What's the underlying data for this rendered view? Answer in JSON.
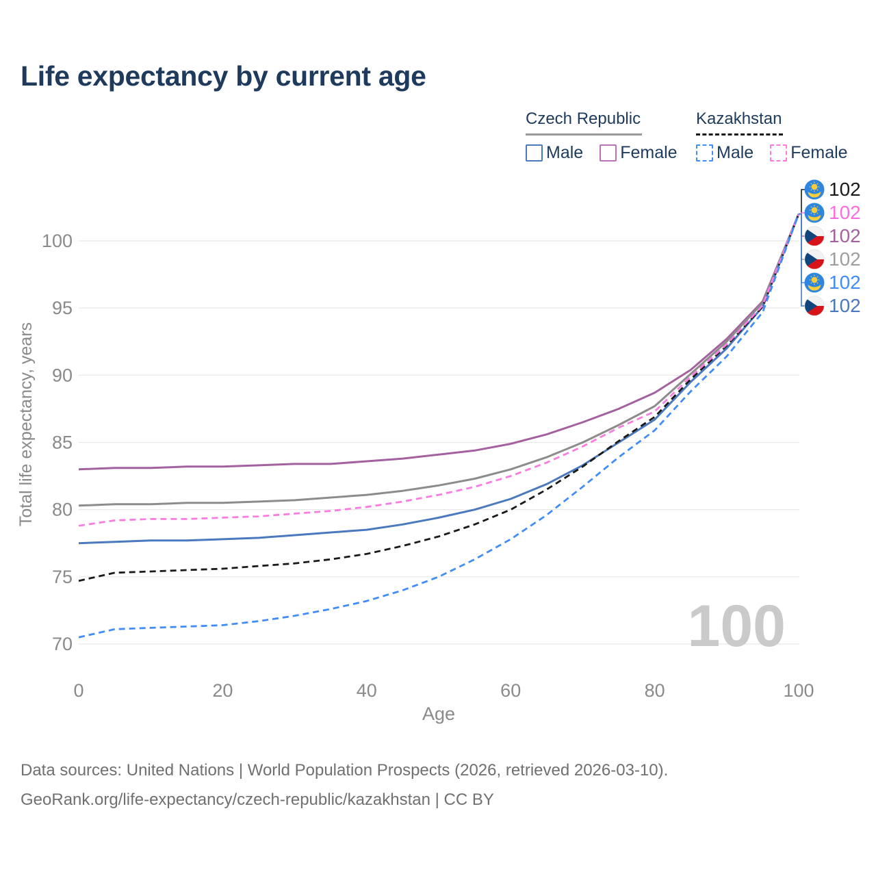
{
  "title": "Life expectancy by current age",
  "legend": {
    "groups": [
      {
        "label": "Czech Republic",
        "line_style": "solid",
        "line_color": "#9a9a9a",
        "items": [
          {
            "label": "Male",
            "color": "#4a79bd",
            "line_style": "solid"
          },
          {
            "label": "Female",
            "color": "#b873b4",
            "line_style": "solid"
          }
        ]
      },
      {
        "label": "Kazakhstan",
        "line_style": "dashed",
        "line_color": "#1a1a1a",
        "items": [
          {
            "label": "Male",
            "color": "#418df7",
            "line_style": "dashed"
          },
          {
            "label": "Female",
            "color": "#fb7ce1",
            "line_style": "dashed"
          }
        ]
      }
    ]
  },
  "chart_data": {
    "type": "line",
    "title": "Life expectancy by current age",
    "xlabel": "Age",
    "ylabel": "Total life expectancy, years",
    "x_ticks": [
      0,
      20,
      40,
      60,
      80,
      100
    ],
    "y_ticks": [
      70,
      75,
      80,
      85,
      90,
      95,
      100
    ],
    "xlim": [
      0,
      100
    ],
    "ylim": [
      68.5,
      103
    ],
    "grid": "horizontal",
    "legend_position": "top-right",
    "x": [
      0,
      5,
      10,
      15,
      20,
      25,
      30,
      35,
      40,
      45,
      50,
      55,
      60,
      65,
      70,
      75,
      80,
      85,
      90,
      95,
      100
    ],
    "series": [
      {
        "name": "Czech Republic — Female",
        "country": "Czech Republic",
        "sex": "Female",
        "color": "#a4619f",
        "dashed": false,
        "values": [
          83.0,
          83.1,
          83.1,
          83.2,
          83.2,
          83.3,
          83.4,
          83.4,
          83.6,
          83.8,
          84.1,
          84.4,
          84.9,
          85.6,
          86.5,
          87.5,
          88.7,
          90.4,
          92.7,
          95.5,
          102
        ]
      },
      {
        "name": "Czech Republic — Both sexes",
        "country": "Czech Republic",
        "sex": "Both sexes",
        "color": "#8c8c8c",
        "dashed": false,
        "values": [
          80.3,
          80.4,
          80.4,
          80.5,
          80.5,
          80.6,
          80.7,
          80.9,
          81.1,
          81.4,
          81.8,
          82.3,
          83.0,
          83.9,
          85.0,
          86.3,
          87.7,
          90.1,
          92.5,
          95.4,
          102
        ]
      },
      {
        "name": "Czech Republic — Male",
        "country": "Czech Republic",
        "sex": "Male",
        "color": "#4a79bd",
        "dashed": false,
        "values": [
          77.5,
          77.6,
          77.7,
          77.7,
          77.8,
          77.9,
          78.1,
          78.3,
          78.5,
          78.9,
          79.4,
          80.0,
          80.8,
          81.9,
          83.3,
          85.0,
          86.7,
          89.5,
          92.0,
          95.1,
          102
        ]
      },
      {
        "name": "Kazakhstan — Both sexes",
        "country": "Kazakhstan",
        "sex": "Both sexes",
        "color": "#1a1a1a",
        "dashed": true,
        "values": [
          74.7,
          75.3,
          75.4,
          75.5,
          75.6,
          75.8,
          76.0,
          76.3,
          76.7,
          77.3,
          78.0,
          78.9,
          80.0,
          81.5,
          83.2,
          85.1,
          86.9,
          89.7,
          92.2,
          95.1,
          102
        ]
      },
      {
        "name": "Kazakhstan — Female",
        "country": "Kazakhstan",
        "sex": "Female",
        "color": "#fb7ce1",
        "dashed": true,
        "values": [
          78.8,
          79.2,
          79.3,
          79.3,
          79.4,
          79.5,
          79.7,
          79.9,
          80.2,
          80.6,
          81.1,
          81.7,
          82.5,
          83.5,
          84.7,
          86.1,
          87.3,
          89.9,
          92.3,
          95.2,
          102
        ]
      },
      {
        "name": "Kazakhstan — Male",
        "country": "Kazakhstan",
        "sex": "Male",
        "color": "#418df7",
        "dashed": true,
        "values": [
          70.5,
          71.1,
          71.2,
          71.3,
          71.4,
          71.7,
          72.1,
          72.6,
          73.2,
          74.0,
          75.0,
          76.3,
          77.8,
          79.6,
          81.7,
          83.9,
          85.9,
          88.8,
          91.4,
          94.7,
          102
        ]
      }
    ],
    "end_labels": [
      {
        "flag": "kz",
        "text": "102",
        "color": "#1a1a1a",
        "series": "Kazakhstan — Both sexes"
      },
      {
        "flag": "kz",
        "text": "102",
        "color": "#fb6ee0",
        "series": "Kazakhstan — Female"
      },
      {
        "flag": "cz",
        "text": "102",
        "color": "#a4619f",
        "series": "Czech Republic — Female"
      },
      {
        "flag": "cz",
        "text": "102",
        "color": "#9e9e9e",
        "series": "Czech Republic — Both sexes"
      },
      {
        "flag": "kz",
        "text": "102",
        "color": "#418df7",
        "series": "Kazakhstan — Male"
      },
      {
        "flag": "cz",
        "text": "102",
        "color": "#4a77bd",
        "series": "Czech Republic — Male"
      }
    ],
    "age_counter": "100"
  },
  "footer": {
    "line1": "Data sources: United Nations | World Population Prospects (2026, retrieved 2026-03-10).",
    "line2": "GeoRank.org/life-expectancy/czech-republic/kazakhstan | CC BY"
  },
  "colors": {
    "title_text": "#1e3a5c",
    "axis_text": "#8a8a8a",
    "grid": "#e7e7e7",
    "watermark": "#cacaca",
    "kz_flag_blue": "#2e86df",
    "kz_flag_gold": "#f6cd3e",
    "cz_flag_red": "#d7141a",
    "cz_flag_blue": "#11457e",
    "cz_flag_white": "#f2f2f2"
  }
}
